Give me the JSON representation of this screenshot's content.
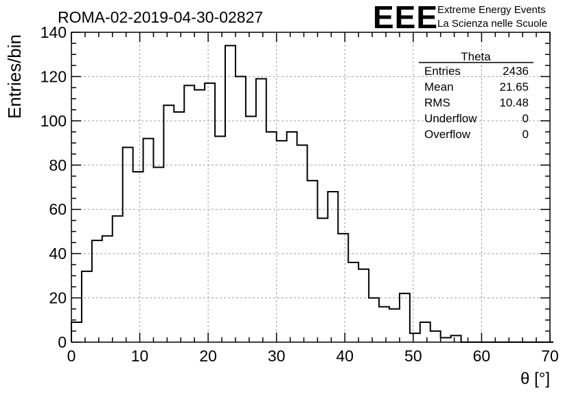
{
  "chart_data": {
    "type": "histogram",
    "title": "ROMA-02-2019-04-30-02827",
    "xlabel": "θ [°]",
    "ylabel": "Entries/bin",
    "xlim": [
      0,
      70
    ],
    "ylim": [
      0,
      140
    ],
    "x_ticks": [
      0,
      10,
      20,
      30,
      40,
      50,
      60,
      70
    ],
    "y_ticks": [
      0,
      20,
      40,
      60,
      80,
      100,
      120,
      140
    ],
    "grid": true,
    "bin_width": 1.5,
    "bin_start": 0,
    "values": [
      9,
      32,
      46,
      48,
      57,
      88,
      77,
      92,
      79,
      107,
      104,
      116,
      114,
      117,
      93,
      134,
      120,
      102,
      119,
      95,
      91,
      95,
      89,
      73,
      56,
      68,
      49,
      36,
      33,
      20,
      16,
      15,
      22,
      4,
      9,
      5,
      2,
      3,
      0,
      0,
      0,
      0,
      0,
      0,
      0,
      0,
      0
    ],
    "legend_position": "top-right"
  },
  "logo": {
    "mark": "EEE",
    "line1": "Extreme Energy Events",
    "line2": "La Scienza nelle Scuole"
  },
  "stats": {
    "title": "Theta",
    "rows": [
      {
        "label": "Entries",
        "value": "2436"
      },
      {
        "label": "Mean",
        "value": "21.65"
      },
      {
        "label": "RMS",
        "value": "10.48"
      },
      {
        "label": "Underflow",
        "value": "0"
      },
      {
        "label": "Overflow",
        "value": "0"
      }
    ]
  },
  "colors": {
    "logo": "#1414e6",
    "line": "#000000",
    "grid": "#a0a0a0"
  }
}
